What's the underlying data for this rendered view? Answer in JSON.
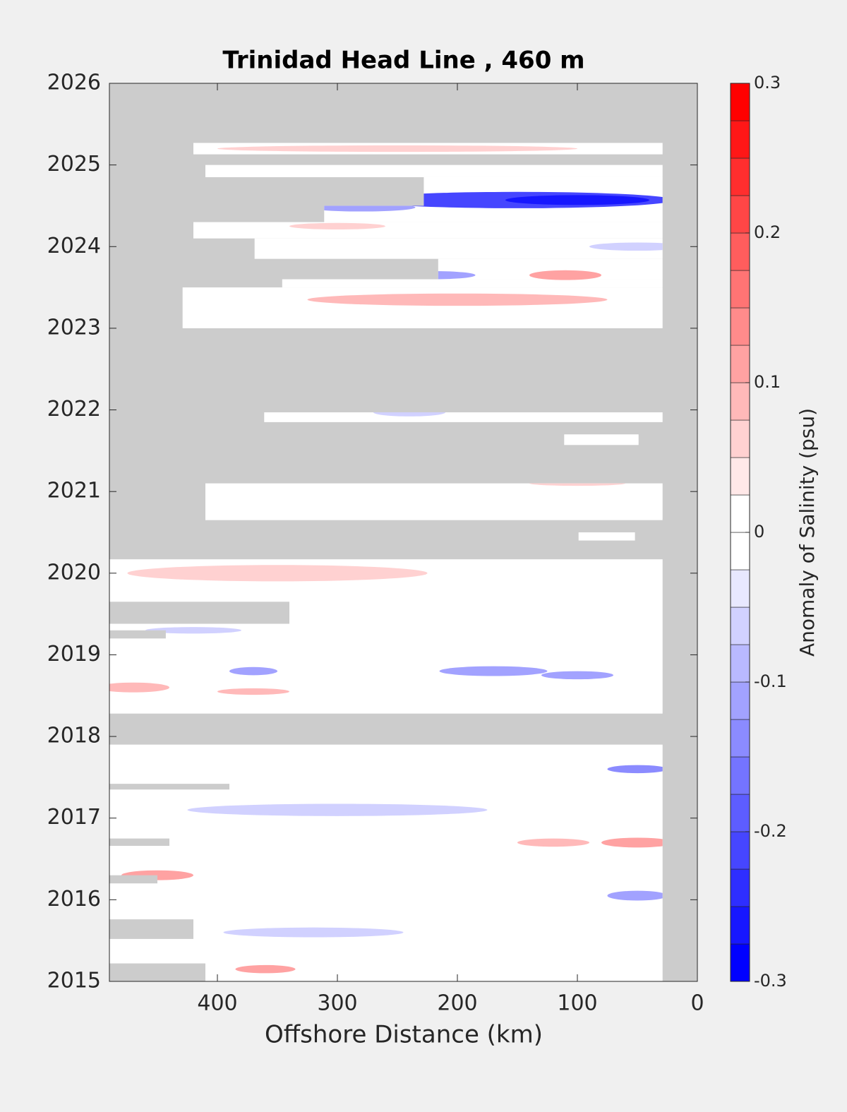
{
  "chart_data": {
    "type": "contour",
    "title": "Trinidad Head Line , 460 m",
    "xlabel": "Offshore Distance (km)",
    "xlim": [
      490,
      0
    ],
    "xticks": [
      400,
      300,
      200,
      100,
      0
    ],
    "ylim": [
      2015,
      2026
    ],
    "yticks": [
      2015,
      2016,
      2017,
      2018,
      2019,
      2020,
      2021,
      2022,
      2023,
      2024,
      2025,
      2026
    ],
    "no_data_color": "#cccccc",
    "colorbar": {
      "label": "Anomaly of Salinity (psu)",
      "clim": [
        -0.3,
        0.3
      ],
      "ticks": [
        -0.3,
        -0.2,
        -0.1,
        0,
        0.1,
        0.2,
        0.3
      ],
      "nlevels": 24,
      "negative_color": "#0000ff",
      "positive_color": "#ff0000"
    },
    "sampled": [
      {
        "x": [
          420,
          29
        ],
        "y": [
          2025.13,
          2025.27
        ]
      },
      {
        "x": [
          410,
          29
        ],
        "y": [
          2024.85,
          2025.0
        ]
      },
      {
        "x": [
          228,
          29
        ],
        "y": [
          2024.5,
          2024.85
        ]
      },
      {
        "x": [
          311,
          29
        ],
        "y": [
          2024.3,
          2024.5
        ]
      },
      {
        "x": [
          420,
          29
        ],
        "y": [
          2024.1,
          2024.3
        ]
      },
      {
        "x": [
          369,
          29
        ],
        "y": [
          2023.85,
          2024.1
        ]
      },
      {
        "x": [
          216,
          29
        ],
        "y": [
          2023.6,
          2023.85
        ]
      },
      {
        "x": [
          346,
          29
        ],
        "y": [
          2023.5,
          2023.6
        ]
      },
      {
        "x": [
          429,
          29
        ],
        "y": [
          2023.0,
          2023.5
        ]
      },
      {
        "x": [
          361,
          29
        ],
        "y": [
          2021.85,
          2021.97
        ]
      },
      {
        "x": [
          111,
          49
        ],
        "y": [
          2021.57,
          2021.7
        ]
      },
      {
        "x": [
          410,
          29
        ],
        "y": [
          2020.65,
          2021.1
        ]
      },
      {
        "x": [
          99,
          52
        ],
        "y": [
          2020.4,
          2020.5
        ]
      },
      {
        "x": [
          490,
          29
        ],
        "y": [
          2018.28,
          2020.17
        ]
      },
      {
        "x": [
          490,
          29
        ],
        "y": [
          2015,
          2017.9
        ]
      }
    ],
    "gaps": [
      {
        "x": [
          490,
          340
        ],
        "y": [
          2019.38,
          2019.65
        ]
      },
      {
        "x": [
          490,
          443
        ],
        "y": [
          2019.2,
          2019.3
        ]
      },
      {
        "x": [
          490,
          390
        ],
        "y": [
          2017.35,
          2017.42
        ]
      },
      {
        "x": [
          490,
          440
        ],
        "y": [
          2016.66,
          2016.75
        ]
      },
      {
        "x": [
          490,
          450
        ],
        "y": [
          2016.2,
          2016.3
        ]
      },
      {
        "x": [
          490,
          420
        ],
        "y": [
          2015.52,
          2015.76
        ]
      },
      {
        "x": [
          490,
          410
        ],
        "y": [
          2015,
          2015.22
        ]
      }
    ],
    "anomalies": [
      {
        "x": 250,
        "y": 2025.2,
        "value": 0.05,
        "width": 300,
        "height": 0.08
      },
      {
        "x": 150,
        "y": 2024.57,
        "value": -0.22,
        "width": 260,
        "height": 0.2
      },
      {
        "x": 100,
        "y": 2024.57,
        "value": -0.27,
        "width": 120,
        "height": 0.12
      },
      {
        "x": 280,
        "y": 2024.48,
        "value": -0.12,
        "width": 90,
        "height": 0.1
      },
      {
        "x": 300,
        "y": 2024.25,
        "value": 0.07,
        "width": 80,
        "height": 0.08
      },
      {
        "x": 50,
        "y": 2024.0,
        "value": -0.06,
        "width": 80,
        "height": 0.1
      },
      {
        "x": 110,
        "y": 2023.65,
        "value": 0.12,
        "width": 60,
        "height": 0.12
      },
      {
        "x": 220,
        "y": 2023.65,
        "value": -0.1,
        "width": 70,
        "height": 0.1
      },
      {
        "x": 200,
        "y": 2023.35,
        "value": 0.08,
        "width": 250,
        "height": 0.15
      },
      {
        "x": 240,
        "y": 2021.97,
        "value": -0.07,
        "width": 60,
        "height": 0.1
      },
      {
        "x": 100,
        "y": 2021.1,
        "value": 0.07,
        "width": 80,
        "height": 0.06
      },
      {
        "x": 350,
        "y": 2020.0,
        "value": 0.07,
        "width": 250,
        "height": 0.2
      },
      {
        "x": 370,
        "y": 2018.8,
        "value": -0.1,
        "width": 40,
        "height": 0.1
      },
      {
        "x": 170,
        "y": 2018.8,
        "value": -0.12,
        "width": 90,
        "height": 0.12
      },
      {
        "x": 100,
        "y": 2018.75,
        "value": -0.1,
        "width": 60,
        "height": 0.1
      },
      {
        "x": 470,
        "y": 2018.6,
        "value": 0.08,
        "width": 60,
        "height": 0.12
      },
      {
        "x": 370,
        "y": 2018.55,
        "value": 0.09,
        "width": 60,
        "height": 0.08
      },
      {
        "x": 420,
        "y": 2019.3,
        "value": -0.06,
        "width": 80,
        "height": 0.08
      },
      {
        "x": 50,
        "y": 2017.6,
        "value": -0.13,
        "width": 50,
        "height": 0.1
      },
      {
        "x": 300,
        "y": 2017.1,
        "value": -0.05,
        "width": 250,
        "height": 0.15
      },
      {
        "x": 50,
        "y": 2016.7,
        "value": 0.1,
        "width": 60,
        "height": 0.12
      },
      {
        "x": 120,
        "y": 2016.7,
        "value": 0.08,
        "width": 60,
        "height": 0.1
      },
      {
        "x": 450,
        "y": 2016.3,
        "value": 0.1,
        "width": 60,
        "height": 0.12
      },
      {
        "x": 50,
        "y": 2016.05,
        "value": -0.1,
        "width": 50,
        "height": 0.12
      },
      {
        "x": 320,
        "y": 2015.6,
        "value": -0.07,
        "width": 150,
        "height": 0.12
      },
      {
        "x": 360,
        "y": 2015.15,
        "value": 0.1,
        "width": 50,
        "height": 0.1
      }
    ]
  }
}
